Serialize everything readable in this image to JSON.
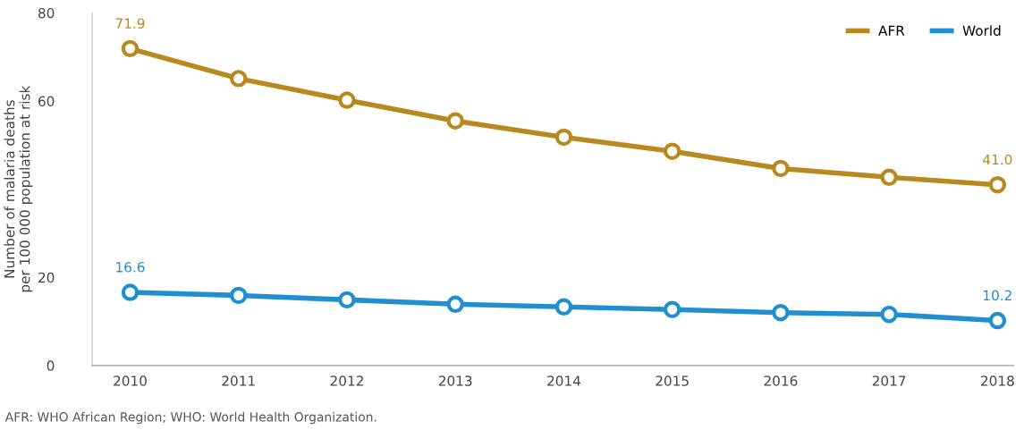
{
  "chart_data": {
    "type": "line",
    "categories": [
      "2010",
      "2011",
      "2012",
      "2013",
      "2014",
      "2015",
      "2016",
      "2017",
      "2018"
    ],
    "series": [
      {
        "name": "AFR",
        "color": "#b8891e",
        "values": [
          71.9,
          65.1,
          60.2,
          55.5,
          51.8,
          48.6,
          44.7,
          42.7,
          41.0
        ],
        "value_labels": [
          "71.9",
          null,
          null,
          null,
          null,
          null,
          null,
          null,
          "41.0"
        ]
      },
      {
        "name": "World",
        "color": "#1f8fd0",
        "values": [
          16.6,
          15.9,
          14.9,
          13.9,
          13.3,
          12.7,
          12.0,
          11.6,
          10.2
        ],
        "value_labels": [
          "16.6",
          null,
          null,
          null,
          null,
          null,
          null,
          null,
          "10.2"
        ]
      }
    ],
    "ylabel": "Number of malaria deaths\nper 100 000 population at risk",
    "ylim": [
      0,
      80
    ],
    "yticks": [
      0,
      20,
      60,
      80
    ],
    "marker": "circle",
    "line_style": "solid",
    "legend": "top right",
    "grid": false,
    "annotations": [
      "AFR: WHO African Region; WHO: World Health Organization."
    ]
  }
}
